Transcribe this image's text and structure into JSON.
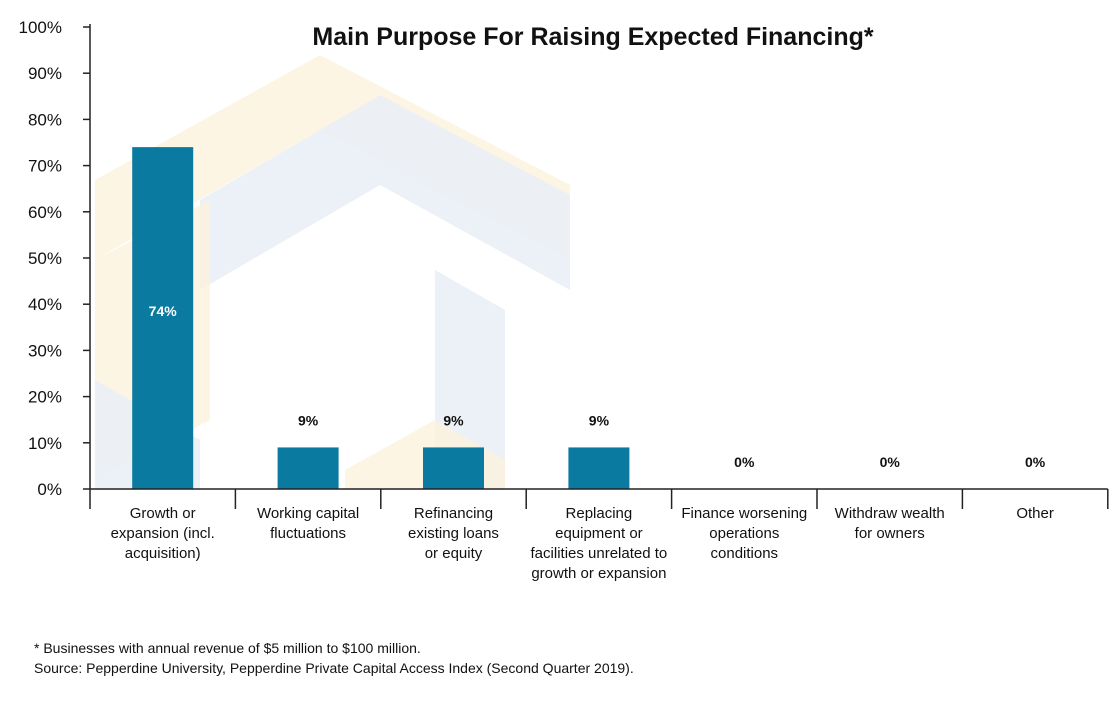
{
  "chart_data": {
    "type": "bar",
    "title": "Main Purpose For Raising Expected Financing*",
    "categories": [
      [
        "Growth or",
        "expansion (incl.",
        "acquisition)"
      ],
      [
        "Working capital",
        "fluctuations"
      ],
      [
        "Refinancing",
        "existing loans",
        "or equity"
      ],
      [
        "Replacing",
        "equipment or",
        "facilities unrelated to",
        "growth or expansion"
      ],
      [
        "Finance worsening",
        "operations",
        "conditions"
      ],
      [
        "Withdraw wealth",
        "for owners"
      ],
      [
        "Other"
      ]
    ],
    "values": [
      74,
      9,
      9,
      9,
      0,
      0,
      0
    ],
    "data_labels": [
      "74%",
      "9%",
      "9%",
      "9%",
      "0%",
      "0%",
      "0%"
    ],
    "ylim": [
      0,
      100
    ],
    "yticks": [
      "0%",
      "10%",
      "20%",
      "30%",
      "40%",
      "50%",
      "60%",
      "70%",
      "80%",
      "90%",
      "100%"
    ],
    "bar_color": "#0a7aa0",
    "grid": false,
    "legend": "none"
  },
  "footnotes": {
    "note": "* Businesses with annual revenue of $5 million to $100 million.",
    "source": "Source: Pepperdine University, Pepperdine Private Capital Access Index (Second Quarter 2019)."
  }
}
